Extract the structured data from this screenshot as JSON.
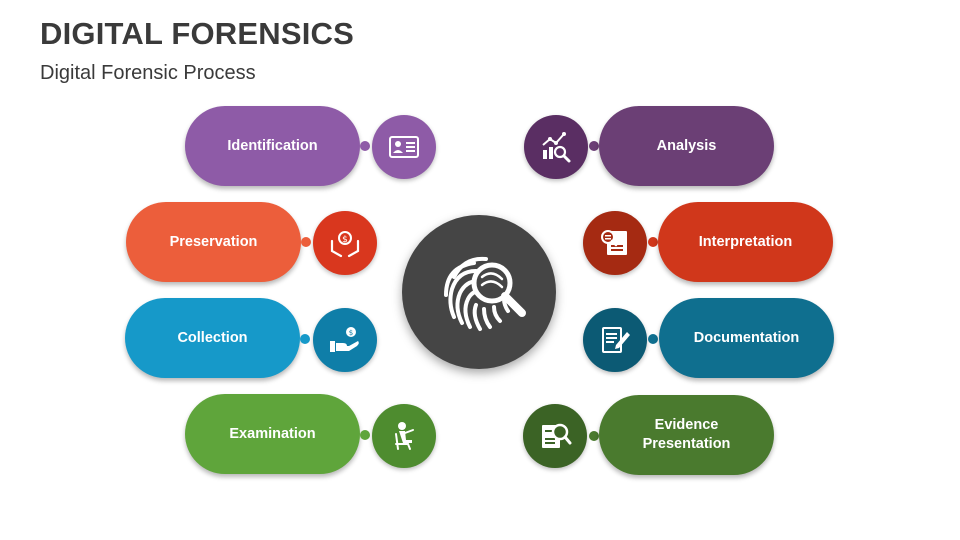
{
  "header": {
    "title": "DIGITAL FORENSICS",
    "subtitle": "Digital Forensic Process"
  },
  "center": {
    "icon": "fingerprint-magnifier-icon",
    "color": "#454545"
  },
  "steps": [
    {
      "label": "Identification",
      "color": "#8E5BA7",
      "icon": "id-card-icon"
    },
    {
      "label": "Preservation",
      "color": "#EC5E3B",
      "icon": "hands-coin-icon"
    },
    {
      "label": "Collection",
      "color": "#1699C9",
      "icon": "hand-coin-icon"
    },
    {
      "label": "Examination",
      "color": "#5FA53B",
      "icon": "person-reading-icon"
    },
    {
      "label": "Analysis",
      "color": "#6B3F75",
      "icon": "chart-magnifier-icon"
    },
    {
      "label": "Interpretation",
      "color": "#D0371B",
      "icon": "document-magnifier-icon"
    },
    {
      "label": "Documentation",
      "color": "#0F6F8F",
      "icon": "document-pen-icon"
    },
    {
      "label": "Evidence\nPresentation",
      "color": "#4A7A2E",
      "icon": "report-magnifier-icon"
    }
  ]
}
